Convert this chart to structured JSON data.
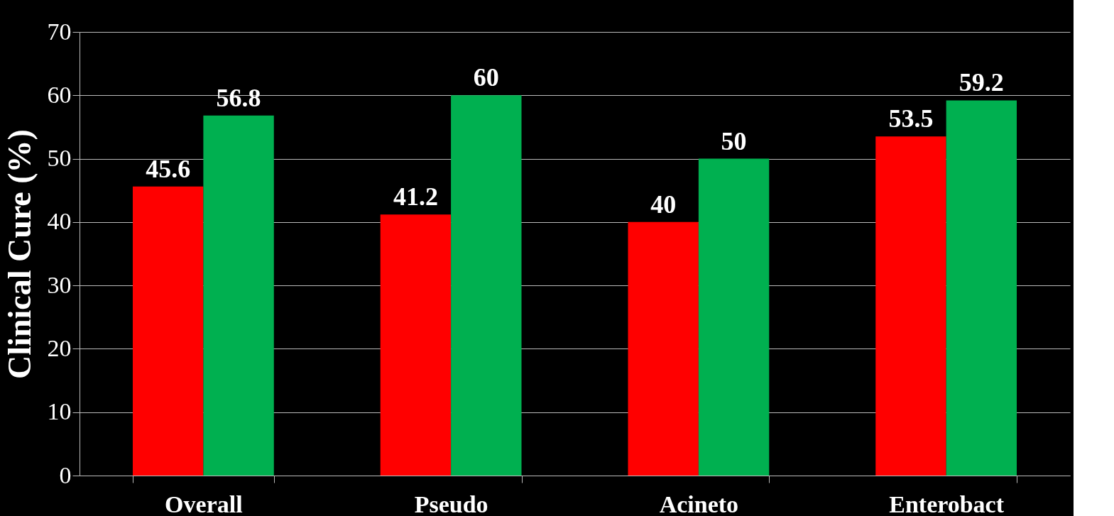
{
  "chart_data": {
    "type": "bar",
    "ylabel": "Clinical Cure (%)",
    "categories": [
      "Overall",
      "Pseudo",
      "Acineto",
      "Enterobact"
    ],
    "series": [
      {
        "color": "#ff0000",
        "values": [
          45.6,
          41.2,
          40,
          53.5
        ]
      },
      {
        "color": "#00b050",
        "values": [
          56.8,
          60,
          50,
          59.2
        ]
      }
    ],
    "ylim": [
      0,
      70
    ],
    "yticks": [
      0,
      10,
      20,
      30,
      40,
      50,
      60,
      70
    ],
    "grid": "y",
    "data_labels": true,
    "legend": false
  }
}
